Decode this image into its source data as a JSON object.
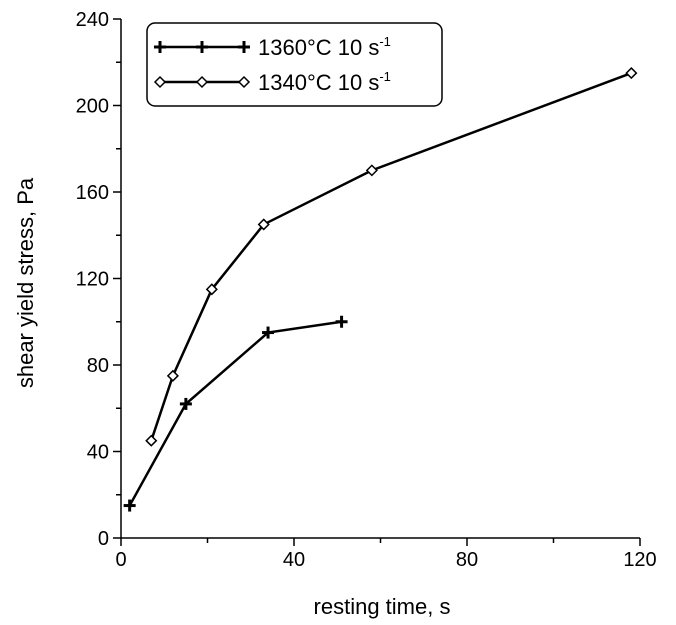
{
  "chart_data": {
    "type": "line",
    "title": "",
    "xlabel": "resting time, s",
    "ylabel": "shear yield stress, Pa",
    "xlim": [
      0,
      120
    ],
    "ylim": [
      0,
      240
    ],
    "x_ticks": [
      "0",
      "40",
      "80",
      "120"
    ],
    "y_ticks": [
      "0",
      "40",
      "80",
      "120",
      "160",
      "200",
      "240"
    ],
    "grid": false,
    "legend_position": "top-left",
    "series": [
      {
        "name": "1360°C 10 s",
        "name_superscript": "-1",
        "marker": "plus",
        "color": "#000000",
        "x": [
          2,
          15,
          34,
          51
        ],
        "y": [
          15,
          62,
          95,
          100
        ]
      },
      {
        "name": "1340°C 10 s",
        "name_superscript": "-1",
        "marker": "diamond",
        "color": "#000000",
        "x": [
          7,
          12,
          21,
          33,
          58,
          118
        ],
        "y": [
          45,
          75,
          115,
          145,
          170,
          215
        ]
      }
    ]
  }
}
